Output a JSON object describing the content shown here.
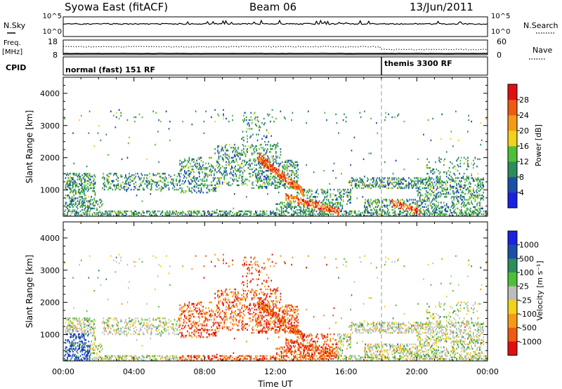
{
  "header": {
    "station": "Syowa East (fitACF)",
    "beam": "Beam 06",
    "date": "13/Jun/2011"
  },
  "strip": {
    "nsky_label": "N.Sky",
    "nsky_ticks": [
      "10^5",
      "10^0"
    ],
    "nsearch_label": "N.Search",
    "nsearch_ticks": [
      "10^5",
      "10^0"
    ],
    "freq_label_1": "Freq.",
    "freq_label_2": "[MHz]",
    "freq_ticks": [
      "18",
      "8"
    ],
    "nave_label": "Nave",
    "nave_ticks": [
      "60",
      "0"
    ],
    "cpid_label": "CPID",
    "cpid_modes": [
      {
        "label": "normal (fast) 151 RF",
        "start_hour": 0
      },
      {
        "label": "themis 3300 RF",
        "start_hour": 18
      }
    ]
  },
  "chart_data": [
    {
      "type": "heatmap",
      "panel": "power",
      "ylabel": "Slant Range [km]",
      "xlabel": "",
      "xlim": [
        0,
        24
      ],
      "ylim": [
        180,
        4500
      ],
      "y_ticks": [
        "4000",
        "3000",
        "2000",
        "1000"
      ],
      "colorbar_label": "Power [dB]",
      "colorbar_ticks": [
        "28",
        "24",
        "20",
        "16",
        "12",
        "8",
        "4"
      ],
      "colors": [
        "#1a22e0",
        "#1c4ea8",
        "#2d8c5c",
        "#4fbf3a",
        "#f2d21a",
        "#f59a18",
        "#ee5a12",
        "#e01010"
      ]
    },
    {
      "type": "heatmap",
      "panel": "velocity",
      "ylabel": "Slant Range [km]",
      "xlabel": "Time UT",
      "xlim": [
        0,
        24
      ],
      "ylim": [
        180,
        4500
      ],
      "y_ticks": [
        "4000",
        "3000",
        "2000",
        "1000"
      ],
      "x_ticks": [
        "00:00",
        "04:00",
        "08:00",
        "12:00",
        "16:00",
        "20:00",
        "00:00"
      ],
      "colorbar_label": "Velocity [m s⁻¹]",
      "colorbar_ticks": [
        "1000",
        "500",
        "100",
        "25",
        "-25",
        "-100",
        "-500",
        "-1000"
      ],
      "colors": [
        "#1a22e0",
        "#1c4ea8",
        "#2d8c5c",
        "#4fbf3a",
        "#bdbdbd",
        "#f2d21a",
        "#f59a18",
        "#ee5a12",
        "#e01010"
      ]
    }
  ]
}
